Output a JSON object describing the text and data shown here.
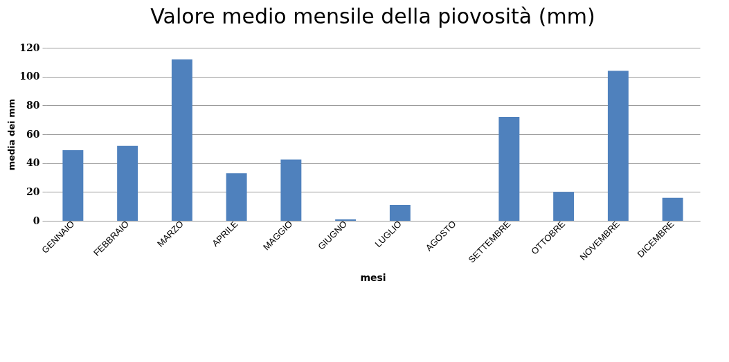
{
  "chart_data": {
    "type": "bar",
    "title": "Valore medio mensile della piovosità (mm)",
    "xlabel": "mesi",
    "ylabel": "media dei mm",
    "categories": [
      "GENNAIO",
      "FEBBRAIO",
      "MARZO",
      "APRILE",
      "MAGGIO",
      "GIUGNO",
      "LUGLIO",
      "AGOSTO",
      "SETTEMBRE",
      "OTTOBRE",
      "NOVEMBRE",
      "DICEMBRE"
    ],
    "values": [
      49,
      52,
      112,
      33,
      42.5,
      1,
      11,
      0,
      72,
      20,
      104,
      16
    ],
    "color": "#4f81bd",
    "ylim": [
      0,
      120
    ],
    "yticks": [
      0,
      20,
      40,
      60,
      80,
      100,
      120
    ],
    "grid": "y"
  }
}
